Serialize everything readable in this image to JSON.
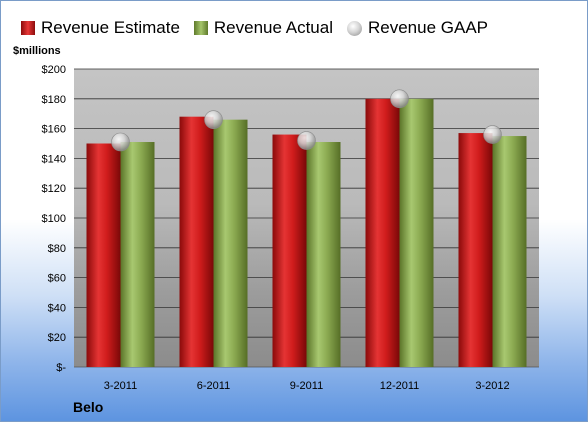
{
  "legend": {
    "estimate_label": "Revenue Estimate",
    "actual_label": "Revenue Actual",
    "gaap_label": "Revenue GAAP"
  },
  "colors": {
    "estimate": "#d42020",
    "actual": "#8cab52",
    "gaap": "#c8c8c8"
  },
  "chart_data": {
    "type": "bar",
    "title": "",
    "ylabel": "$millions",
    "xlabel": "",
    "company": "Belo",
    "categories": [
      "3-2011",
      "6-2011",
      "9-2011",
      "12-2011",
      "3-2012"
    ],
    "series": [
      {
        "name": "Revenue Estimate",
        "values": [
          150,
          168,
          156,
          180,
          157
        ]
      },
      {
        "name": "Revenue Actual",
        "values": [
          151,
          166,
          151,
          180,
          155
        ]
      },
      {
        "name": "Revenue GAAP",
        "values": [
          151,
          166,
          152,
          180,
          156
        ]
      }
    ],
    "ylim": [
      0,
      200
    ],
    "yticks": [
      "$-",
      "$20",
      "$40",
      "$60",
      "$80",
      "$100",
      "$120",
      "$140",
      "$160",
      "$180",
      "$200"
    ],
    "grid": true,
    "legend_position": "top"
  }
}
